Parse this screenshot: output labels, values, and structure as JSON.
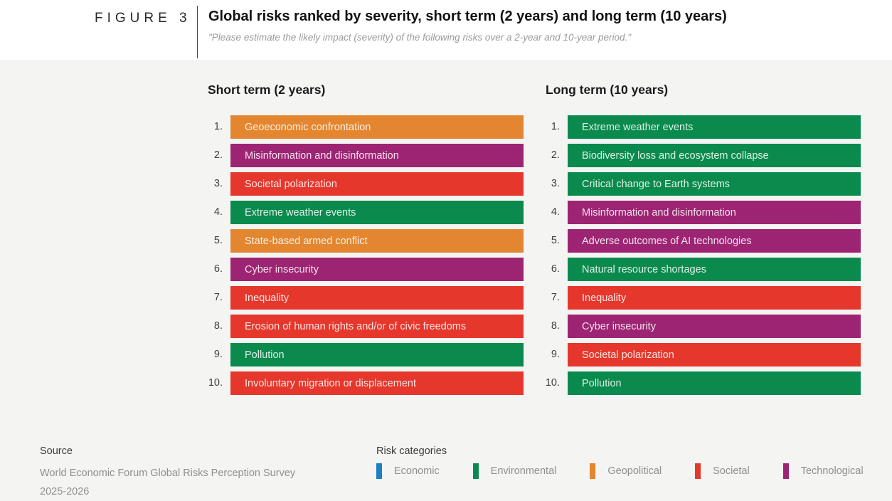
{
  "header": {
    "figure_label": "FIGURE 3",
    "title": "Global risks ranked by severity, short term (2 years) and long term (10 years)",
    "subtitle": "\"Please estimate the likely impact (severity) of the following risks over a 2-year and 10-year period.\""
  },
  "chart_data": {
    "type": "table",
    "title": "Global risks ranked by severity, short term (2 years) and long term (10 years)",
    "category_colors": {
      "economic": "#1b80c4",
      "environmental": "#0a8a4d",
      "geopolitical": "#e3862f",
      "societal": "#e5372c",
      "technological": "#9d2472"
    },
    "columns": [
      {
        "title": "Short term (2 years)",
        "ranks": [
          {
            "rank": "1.",
            "label": "Geoeconomic confrontation",
            "category": "geopolitical"
          },
          {
            "rank": "2.",
            "label": "Misinformation and disinformation",
            "category": "technological"
          },
          {
            "rank": "3.",
            "label": "Societal polarization",
            "category": "societal"
          },
          {
            "rank": "4.",
            "label": "Extreme weather events",
            "category": "environmental"
          },
          {
            "rank": "5.",
            "label": "State-based armed conflict",
            "category": "geopolitical"
          },
          {
            "rank": "6.",
            "label": "Cyber insecurity",
            "category": "technological"
          },
          {
            "rank": "7.",
            "label": "Inequality",
            "category": "societal"
          },
          {
            "rank": "8.",
            "label": "Erosion of human rights and/or of civic freedoms",
            "category": "societal"
          },
          {
            "rank": "9.",
            "label": "Pollution",
            "category": "environmental"
          },
          {
            "rank": "10.",
            "label": "Involuntary migration or displacement",
            "category": "societal"
          }
        ]
      },
      {
        "title": "Long term (10 years)",
        "ranks": [
          {
            "rank": "1.",
            "label": "Extreme weather events",
            "category": "environmental"
          },
          {
            "rank": "2.",
            "label": "Biodiversity loss and ecosystem collapse",
            "category": "environmental"
          },
          {
            "rank": "3.",
            "label": "Critical change to Earth systems",
            "category": "environmental"
          },
          {
            "rank": "4.",
            "label": "Misinformation and disinformation",
            "category": "technological"
          },
          {
            "rank": "5.",
            "label": "Adverse outcomes of AI technologies",
            "category": "technological"
          },
          {
            "rank": "6.",
            "label": "Natural resource shortages",
            "category": "environmental"
          },
          {
            "rank": "7.",
            "label": "Inequality",
            "category": "societal"
          },
          {
            "rank": "8.",
            "label": "Cyber insecurity",
            "category": "technological"
          },
          {
            "rank": "9.",
            "label": "Societal polarization",
            "category": "societal"
          },
          {
            "rank": "10.",
            "label": "Pollution",
            "category": "environmental"
          }
        ]
      }
    ]
  },
  "footer": {
    "source_heading": "Source",
    "source_line1": "World Economic Forum Global Risks Perception Survey",
    "source_line2": "2025-2026",
    "legend_heading": "Risk categories",
    "legend": [
      {
        "label": "Economic",
        "color": "#1b80c4"
      },
      {
        "label": "Environmental",
        "color": "#0a8a4d"
      },
      {
        "label": "Geopolitical",
        "color": "#e3862f"
      },
      {
        "label": "Societal",
        "color": "#e5372c"
      },
      {
        "label": "Technological",
        "color": "#9d2472"
      }
    ]
  }
}
